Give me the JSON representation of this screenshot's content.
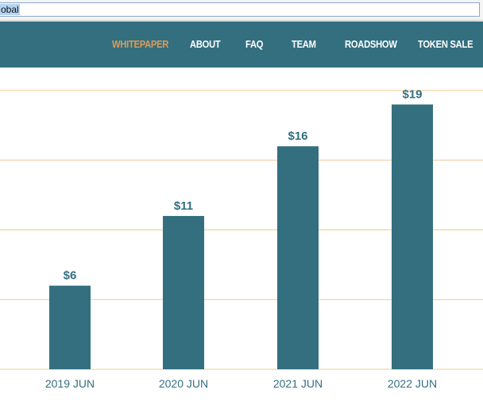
{
  "address_bar": {
    "value": "obal"
  },
  "nav": {
    "items": [
      {
        "label": "WHITEPAPER",
        "active": true
      },
      {
        "label": "ABOUT",
        "active": false
      },
      {
        "label": "FAQ",
        "active": false
      },
      {
        "label": "TEAM",
        "active": false
      },
      {
        "label": "ROADSHOW",
        "active": false
      },
      {
        "label": "TOKEN SALE",
        "active": false
      }
    ],
    "colors": {
      "background": "#336f7f",
      "text": "#ffffff",
      "active": "#e19a55"
    }
  },
  "chart_data": {
    "type": "bar",
    "categories": [
      "2019 JUN",
      "2020 JUN",
      "2021 JUN",
      "2022 JUN"
    ],
    "values": [
      6,
      11,
      16,
      19
    ],
    "data_labels": [
      "$6",
      "$11",
      "$16",
      "$19"
    ],
    "title": "",
    "xlabel": "",
    "ylabel": "",
    "ylim": [
      0,
      20
    ],
    "grid": true,
    "colors": {
      "bar": "#336f7f",
      "grid": "#f0c890",
      "label": "#336f7f"
    }
  }
}
